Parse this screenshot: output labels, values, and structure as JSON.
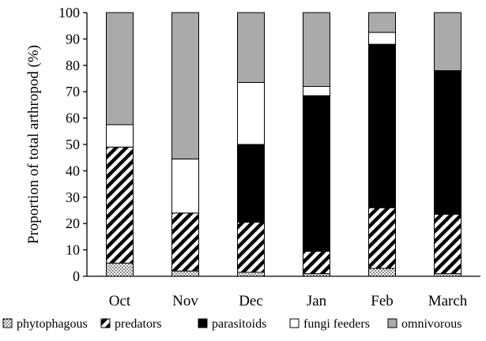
{
  "chart_data": {
    "type": "bar",
    "stacked": true,
    "categories": [
      "Oct",
      "Nov",
      "Dec",
      "Jan",
      "Feb",
      "March"
    ],
    "series": [
      {
        "name": "phytophagous",
        "pattern": "dots",
        "values": [
          5,
          2,
          1.5,
          1,
          3,
          1
        ]
      },
      {
        "name": "predators",
        "pattern": "diagonal-hatch",
        "values": [
          44,
          22,
          19,
          8.5,
          23,
          22.5
        ]
      },
      {
        "name": "parasitoids",
        "pattern": "solid-black",
        "values": [
          0,
          0,
          29.5,
          59,
          62,
          54.5
        ]
      },
      {
        "name": "fungi feeders",
        "pattern": "white",
        "values": [
          8.5,
          20.5,
          23.5,
          3.5,
          4.5,
          0
        ]
      },
      {
        "name": "omnivorous",
        "pattern": "gray",
        "values": [
          42.5,
          55.5,
          26.5,
          28,
          7.5,
          22
        ]
      }
    ],
    "xlabel": "",
    "ylabel": "Proportion of total arthropod (%)",
    "ylim": [
      0,
      100
    ],
    "yticks": [
      0,
      10,
      20,
      30,
      40,
      50,
      60,
      70,
      80,
      90,
      100
    ],
    "grid": false,
    "legend_position": "bottom",
    "colors": {
      "solid": "#000000",
      "gray": "#aaaaaa",
      "white": "#ffffff",
      "axis": "#000000"
    }
  }
}
